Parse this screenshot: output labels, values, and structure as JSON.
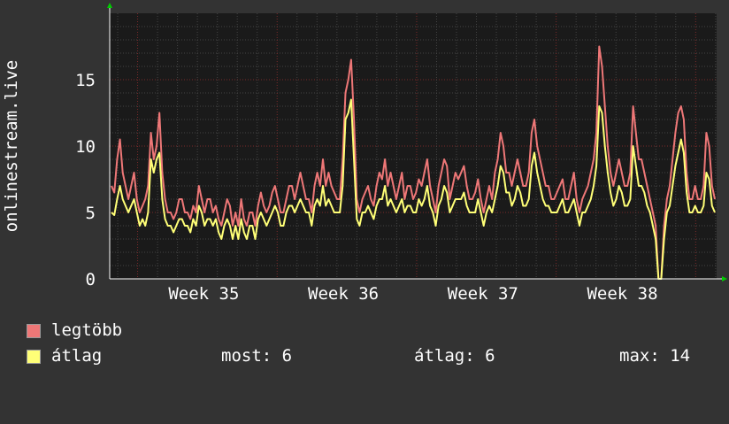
{
  "colors": {
    "background": "#333333",
    "plot_background": "#1a1a1a",
    "grid_minor": "#444444",
    "grid_major": "#7a2a2a",
    "axis": "#ffffff",
    "max_series": "#ee7777",
    "avg_series": "#ffff77",
    "arrow": "#00cc00"
  },
  "chart_data": {
    "type": "line",
    "title": "",
    "xlabel": "",
    "ylabel": "onlinestream.live",
    "ylim": [
      0,
      20
    ],
    "yticks": [
      0,
      5,
      10,
      15
    ],
    "xticks": [
      "Week 35",
      "Week 36",
      "Week 37",
      "Week 38"
    ],
    "grid": true,
    "legend_placement": "bottom-left",
    "series": [
      {
        "name": "legtöbb",
        "color": "#ee7777",
        "values": [
          7,
          6.5,
          9,
          10.5,
          8,
          7,
          6,
          7,
          8,
          6,
          5,
          5.5,
          6,
          7,
          11,
          9,
          10,
          12.5,
          8,
          6,
          5,
          5,
          4.5,
          5,
          6,
          6,
          5,
          5,
          4.5,
          5.5,
          5,
          7,
          6,
          5,
          6,
          6,
          5,
          5.5,
          4.5,
          4,
          5,
          6,
          5.5,
          4,
          5,
          4,
          6,
          4.5,
          4,
          5,
          5,
          4,
          5.5,
          6.5,
          5.5,
          5,
          5.5,
          6.5,
          7,
          6,
          5,
          5,
          6,
          7,
          7,
          6,
          7,
          8,
          7,
          6,
          6,
          5,
          7,
          8,
          7,
          9,
          7,
          8,
          7,
          6.5,
          6,
          6,
          9,
          14,
          15,
          16.5,
          12,
          6,
          5,
          6,
          6.5,
          7,
          6,
          5.5,
          7,
          8,
          7.5,
          9,
          7,
          8,
          7,
          6,
          7,
          8,
          6,
          7,
          7,
          6,
          6.5,
          7.5,
          7,
          8,
          9,
          7,
          6,
          5,
          7,
          8,
          9,
          8.5,
          6,
          7,
          8,
          7.5,
          8,
          8.5,
          7,
          6,
          6,
          6.5,
          7.5,
          6,
          5,
          6,
          7,
          6,
          8,
          9,
          11,
          10,
          8,
          8,
          7,
          8,
          9,
          8,
          7,
          7,
          8,
          11,
          12,
          10,
          9,
          8,
          7,
          7,
          6,
          6,
          6.5,
          7,
          7.5,
          6,
          6,
          7,
          8,
          6,
          5,
          6,
          6.5,
          7,
          8,
          9,
          11,
          17.5,
          16,
          13,
          10,
          8,
          7,
          8,
          9,
          8,
          7,
          7,
          8,
          13,
          11,
          9,
          9,
          8,
          7,
          6,
          5,
          4,
          0,
          0,
          4,
          6,
          7,
          9,
          11,
          12.5,
          13,
          12,
          8,
          6,
          6,
          7,
          6,
          6,
          7,
          11,
          10,
          7,
          6
        ]
      },
      {
        "name": "átlag",
        "color": "#ffff77",
        "values": [
          5,
          4.8,
          6,
          7,
          6,
          5.5,
          5,
          5.5,
          6,
          5,
          4,
          4.5,
          4,
          5,
          9,
          8,
          9,
          9.5,
          6,
          4.5,
          4,
          4,
          3.5,
          4,
          4.5,
          4.5,
          4,
          4,
          3.5,
          4.5,
          4,
          5.5,
          5,
          4,
          4.5,
          4.5,
          4,
          4.5,
          3.5,
          3,
          4,
          4.5,
          4,
          3,
          4,
          3,
          4.5,
          3.5,
          3,
          4,
          4,
          3,
          4.5,
          5,
          4.5,
          4,
          4.5,
          5,
          5.5,
          5,
          4,
          4,
          5,
          5.5,
          5.5,
          5,
          5.5,
          6,
          5.5,
          5,
          5,
          4,
          5.5,
          6,
          5.5,
          7,
          5.5,
          6,
          5.5,
          5,
          5,
          5,
          7,
          12,
          12.5,
          13.5,
          9,
          4.5,
          4,
          5,
          5,
          5.5,
          5,
          4.5,
          5.5,
          6,
          6,
          7,
          5.5,
          6,
          5.5,
          5,
          5.5,
          6,
          5,
          5.5,
          5.5,
          5,
          5,
          6,
          5.5,
          6,
          7,
          5.5,
          5,
          4,
          5.5,
          6,
          7,
          6.5,
          5,
          5.5,
          6,
          6,
          6,
          6.5,
          5.5,
          5,
          5,
          5,
          6,
          5,
          4,
          5,
          5.5,
          5,
          6,
          7,
          8.5,
          8,
          6.5,
          6.5,
          5.5,
          6,
          7,
          6.5,
          5.5,
          5.5,
          6,
          8.5,
          9.5,
          8,
          7,
          6,
          5.5,
          5.5,
          5,
          5,
          5,
          5.5,
          6,
          5,
          5,
          5.5,
          6,
          5,
          4,
          5,
          5,
          5.5,
          6,
          7,
          8.5,
          13,
          12.5,
          10,
          8,
          6.5,
          5.5,
          6,
          7,
          6.5,
          5.5,
          5.5,
          6,
          10,
          8.5,
          7,
          7,
          6.5,
          5.5,
          5,
          4,
          3,
          0,
          0,
          3,
          5,
          5.5,
          7,
          8.5,
          9.5,
          10.5,
          9.5,
          6.5,
          5,
          5,
          5.5,
          5,
          5,
          5.5,
          8,
          7.5,
          5.5,
          5
        ]
      }
    ]
  },
  "legend": {
    "items": [
      {
        "label": "legtöbb",
        "color": "#ee7777"
      },
      {
        "label": "átlag",
        "color": "#ffff77"
      }
    ],
    "stats": {
      "now_label": "most: 6",
      "avg_label": "átlag: 6",
      "max_label": "max: 14"
    }
  }
}
